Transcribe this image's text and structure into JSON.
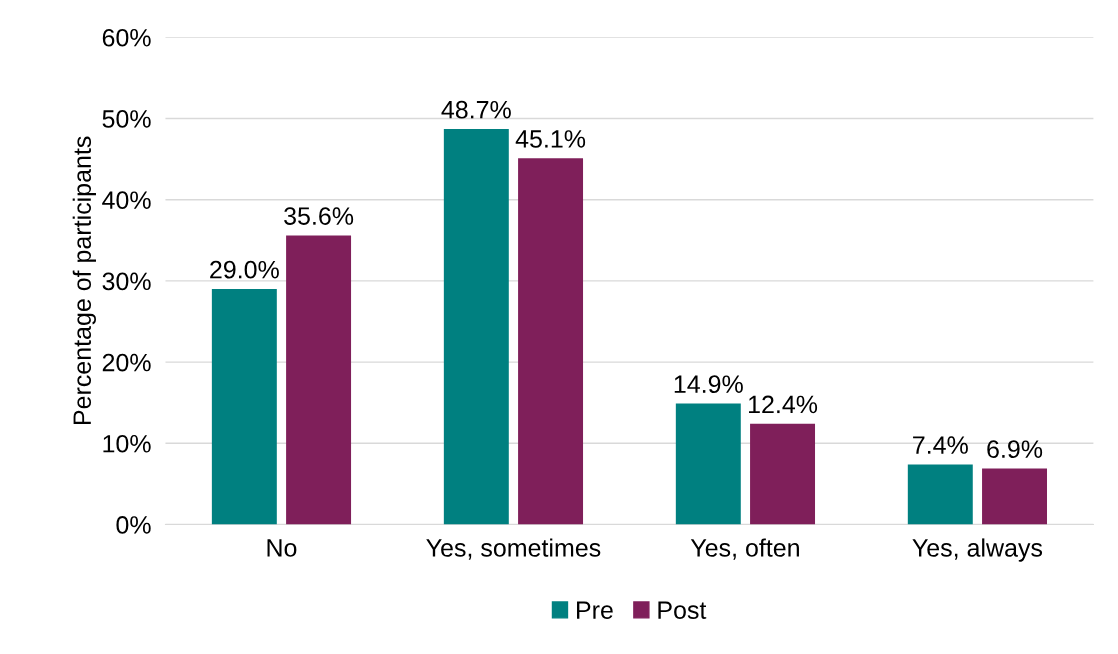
{
  "chart_data": {
    "type": "bar",
    "ylabel": "Percentage of participants",
    "categories": [
      "No",
      "Yes, sometimes",
      "Yes, often",
      "Yes, always"
    ],
    "series": [
      {
        "name": "Pre",
        "color": "#008080",
        "values": [
          29.0,
          48.7,
          14.9,
          7.4
        ],
        "value_labels": [
          "29.0%",
          "48.7%",
          "14.9%",
          "7.4%"
        ]
      },
      {
        "name": "Post",
        "color": "#7f1f5a",
        "values": [
          35.6,
          45.1,
          12.4,
          6.9
        ],
        "value_labels": [
          "35.6%",
          "45.1%",
          "12.4%",
          "6.9%"
        ]
      }
    ],
    "ylim": [
      0,
      60
    ],
    "yticks": [
      {
        "value": 0,
        "label": "0%"
      },
      {
        "value": 10,
        "label": "10%"
      },
      {
        "value": 20,
        "label": "20%"
      },
      {
        "value": 30,
        "label": "30%"
      },
      {
        "value": 40,
        "label": "40%"
      },
      {
        "value": 50,
        "label": "50%"
      },
      {
        "value": 60,
        "label": "60%"
      }
    ],
    "grid": "y",
    "legend": "bottom"
  }
}
